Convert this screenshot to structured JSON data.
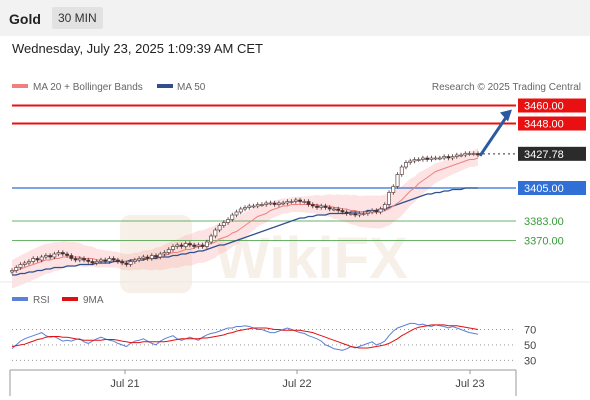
{
  "header": {
    "symbol": "Gold",
    "timeframe": "30 MIN",
    "datetime": "Wednesday, July 23, 2025 1:09:39 AM CET"
  },
  "legend": {
    "ma20_bb": "MA 20 + Bollinger Bands",
    "ma50": "MA 50",
    "credit": "Research © 2025 Trading Central",
    "rsi": "RSI",
    "rsi_ma": "9MA"
  },
  "colors": {
    "resistance": "#e81010",
    "support": "#2f6fd6",
    "target_support": "#3a9a3a",
    "ma20": "#f08080",
    "ma50": "#2f4f8f",
    "bb_fill": "#f8b0b0",
    "rsi": "#5b80d8",
    "rsi_ma": "#e01010",
    "arrow": "#2c5aa0",
    "candle": "#4a3030"
  },
  "chart_data": [
    {
      "type": "candlestick",
      "title": "Gold 30 MIN",
      "ylim": [
        3345,
        3465
      ],
      "x_ticks": [
        "Jul 21",
        "Jul 22",
        "Jul 23"
      ],
      "levels": [
        {
          "label": "3460.00",
          "value": 3460.0,
          "kind": "resistance"
        },
        {
          "label": "3448.00",
          "value": 3448.0,
          "kind": "resistance"
        },
        {
          "label": "3427.78",
          "value": 3427.78,
          "kind": "last"
        },
        {
          "label": "3405.00",
          "value": 3405.0,
          "kind": "pivot"
        },
        {
          "label": "3383.00",
          "value": 3383.0,
          "kind": "support"
        },
        {
          "label": "3370.00",
          "value": 3370.0,
          "kind": "support"
        }
      ],
      "close": [
        3350,
        3352,
        3354,
        3355,
        3356,
        3358,
        3357,
        3359,
        3360,
        3359,
        3361,
        3362,
        3361,
        3360,
        3358,
        3357,
        3358,
        3357,
        3356,
        3355,
        3356,
        3357,
        3356,
        3358,
        3357,
        3356,
        3355,
        3354,
        3356,
        3357,
        3358,
        3359,
        3358,
        3360,
        3359,
        3361,
        3362,
        3364,
        3366,
        3367,
        3366,
        3368,
        3367,
        3366,
        3367,
        3366,
        3369,
        3373,
        3377,
        3380,
        3382,
        3384,
        3387,
        3389,
        3391,
        3392,
        3393,
        3393,
        3394,
        3394,
        3395,
        3395,
        3394,
        3395,
        3395,
        3396,
        3396,
        3397,
        3396,
        3396,
        3394,
        3393,
        3392,
        3393,
        3392,
        3391,
        3391,
        3390,
        3389,
        3388,
        3388,
        3387,
        3388,
        3388,
        3389,
        3390,
        3389,
        3391,
        3394,
        3402,
        3406,
        3414,
        3419,
        3422,
        3423,
        3424,
        3424,
        3425,
        3424,
        3425,
        3425,
        3425,
        3426,
        3425,
        3426,
        3427,
        3427,
        3428,
        3428,
        3428,
        3427
      ],
      "ma20": [
        3349,
        3350,
        3351,
        3352,
        3353,
        3354,
        3355,
        3356,
        3357,
        3357,
        3358,
        3358,
        3359,
        3359,
        3359,
        3359,
        3359,
        3358,
        3358,
        3358,
        3357,
        3357,
        3357,
        3357,
        3357,
        3357,
        3356,
        3356,
        3356,
        3357,
        3357,
        3358,
        3358,
        3358,
        3359,
        3359,
        3360,
        3361,
        3362,
        3362,
        3363,
        3364,
        3364,
        3365,
        3366,
        3366,
        3367,
        3368,
        3369,
        3371,
        3372,
        3373,
        3375,
        3376,
        3378,
        3380,
        3382,
        3384,
        3386,
        3387,
        3388,
        3390,
        3391,
        3392,
        3393,
        3393,
        3394,
        3394,
        3394,
        3394,
        3394,
        3394,
        3394,
        3393,
        3393,
        3393,
        3392,
        3392,
        3391,
        3391,
        3390,
        3390,
        3389,
        3389,
        3389,
        3389,
        3389,
        3389,
        3390,
        3391,
        3393,
        3395,
        3397,
        3400,
        3403,
        3405,
        3408,
        3410,
        3412,
        3414,
        3416,
        3417,
        3418,
        3419,
        3420,
        3421,
        3422,
        3423,
        3424,
        3424,
        3425
      ],
      "ma50": [
        3347,
        3347,
        3348,
        3348,
        3349,
        3349,
        3350,
        3350,
        3351,
        3351,
        3352,
        3352,
        3352,
        3353,
        3353,
        3353,
        3354,
        3354,
        3354,
        3354,
        3355,
        3355,
        3355,
        3355,
        3356,
        3356,
        3356,
        3356,
        3357,
        3357,
        3357,
        3357,
        3358,
        3358,
        3358,
        3359,
        3359,
        3359,
        3360,
        3360,
        3361,
        3361,
        3362,
        3362,
        3363,
        3363,
        3364,
        3365,
        3366,
        3367,
        3367,
        3368,
        3369,
        3370,
        3371,
        3372,
        3373,
        3374,
        3375,
        3376,
        3377,
        3378,
        3379,
        3380,
        3381,
        3382,
        3383,
        3384,
        3385,
        3385,
        3386,
        3386,
        3387,
        3387,
        3387,
        3388,
        3388,
        3388,
        3388,
        3388,
        3389,
        3389,
        3389,
        3389,
        3390,
        3390,
        3390,
        3391,
        3391,
        3392,
        3393,
        3394,
        3395,
        3396,
        3397,
        3398,
        3399,
        3400,
        3401,
        3401,
        3402,
        3402,
        3403,
        3403,
        3404,
        3404,
        3404,
        3405,
        3405,
        3405,
        3405
      ],
      "projection": {
        "from": 3427.78,
        "to": 3460.0
      }
    },
    {
      "type": "line",
      "title": "RSI",
      "ylim": [
        20,
        85
      ],
      "y_ticks": [
        "70",
        "50",
        "30"
      ],
      "y_tick_values": [
        70,
        50,
        30
      ],
      "series": [
        {
          "name": "RSI",
          "values": [
            45,
            50,
            55,
            58,
            60,
            62,
            64,
            66,
            62,
            60,
            61,
            58,
            55,
            56,
            55,
            57,
            58,
            54,
            52,
            55,
            58,
            60,
            58,
            56,
            55,
            52,
            50,
            48,
            52,
            55,
            56,
            58,
            55,
            52,
            50,
            55,
            58,
            60,
            62,
            58,
            56,
            58,
            60,
            58,
            56,
            60,
            63,
            65,
            66,
            68,
            70,
            72,
            72,
            74,
            74,
            75,
            74,
            72,
            70,
            70,
            68,
            66,
            66,
            68,
            70,
            72,
            70,
            68,
            66,
            65,
            62,
            60,
            58,
            55,
            50,
            48,
            45,
            44,
            43,
            45,
            48,
            46,
            48,
            50,
            52,
            54,
            50,
            52,
            55,
            62,
            68,
            72,
            74,
            76,
            78,
            78,
            76,
            77,
            75,
            74,
            76,
            75,
            74,
            72,
            74,
            72,
            70,
            68,
            66,
            65,
            64
          ]
        },
        {
          "name": "9MA",
          "values": [
            48,
            49,
            50,
            51,
            53,
            55,
            57,
            58,
            60,
            61,
            61,
            61,
            60,
            60,
            59,
            58,
            57,
            56,
            56,
            56,
            56,
            56,
            57,
            57,
            57,
            56,
            55,
            54,
            53,
            53,
            53,
            54,
            54,
            54,
            54,
            54,
            54,
            55,
            56,
            57,
            58,
            58,
            58,
            58,
            58,
            59,
            59,
            60,
            61,
            62,
            63,
            65,
            66,
            68,
            69,
            70,
            71,
            72,
            72,
            72,
            72,
            71,
            70,
            70,
            69,
            69,
            69,
            69,
            69,
            68,
            67,
            66,
            64,
            62,
            60,
            58,
            56,
            54,
            52,
            50,
            48,
            47,
            46,
            46,
            46,
            47,
            48,
            49,
            50,
            52,
            55,
            58,
            62,
            65,
            68,
            71,
            73,
            74,
            75,
            76,
            76,
            76,
            76,
            75,
            75,
            75,
            74,
            73,
            72,
            71,
            70
          ]
        }
      ]
    }
  ]
}
